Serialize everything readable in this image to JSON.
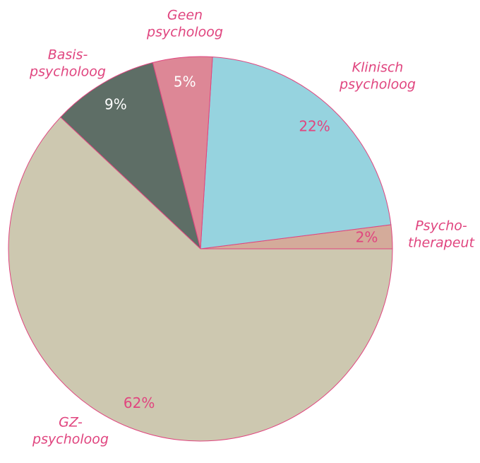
{
  "chart_data": {
    "type": "pie",
    "categories": [
      [
        "Psycho-",
        "therapeut"
      ],
      [
        "Klinisch",
        "psycholoog"
      ],
      [
        "Geen",
        "psycholoog"
      ],
      [
        "Basis-",
        "psycholoog"
      ],
      [
        "GZ-",
        "psycholoog"
      ]
    ],
    "values": [
      2,
      22,
      5,
      9,
      62
    ],
    "value_labels": [
      "2%",
      "22%",
      "5%",
      "9%",
      "62%"
    ],
    "colors": [
      "#d4ab9a",
      "#96d3df",
      "#dd8796",
      "#5e6e66",
      "#cdc8b0"
    ],
    "label_colors": [
      "#e0457f",
      "#e0457f",
      "#ffffff",
      "#ffffff",
      "#e0457f"
    ]
  }
}
